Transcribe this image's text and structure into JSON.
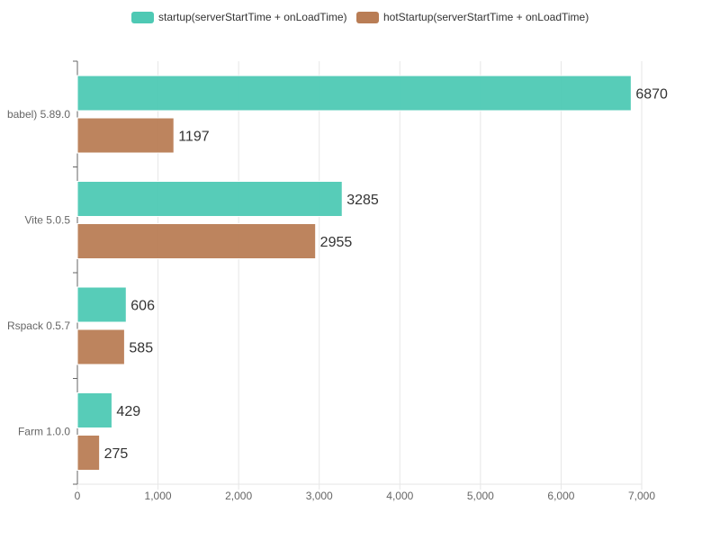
{
  "chart_data": {
    "type": "bar",
    "orientation": "horizontal",
    "categories": [
      "babel) 5.89.0",
      "Vite 5.0.5",
      "Rspack 0.5.7",
      "Farm 1.0.0"
    ],
    "series": [
      {
        "name": "startup(serverStartTime + onLoadTime)",
        "color": "#4ec9b4",
        "values": [
          6870,
          3285,
          606,
          429
        ]
      },
      {
        "name": "hotStartup(serverStartTime + onLoadTime)",
        "color": "#b97d55",
        "values": [
          1197,
          2955,
          585,
          275
        ]
      }
    ],
    "xlim": [
      0,
      7000
    ],
    "x_ticks": [
      0,
      1000,
      2000,
      3000,
      4000,
      5000,
      6000,
      7000
    ],
    "x_tick_labels": [
      "0",
      "1,000",
      "2,000",
      "3,000",
      "4,000",
      "5,000",
      "6,000",
      "7,000"
    ],
    "grid": true,
    "legend_position": "top-center",
    "title": "",
    "xlabel": "",
    "ylabel": ""
  }
}
